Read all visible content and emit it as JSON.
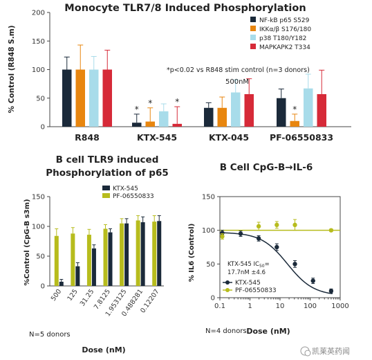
{
  "colors": {
    "navy": "#1b2a3a",
    "orange": "#e8860f",
    "lightblue": "#a8dcea",
    "red": "#d62a38",
    "olive": "#b7bc1d"
  },
  "chart_data": [
    {
      "type": "bar",
      "title": "Monocyte TLR7/8 Induced Phosphorylation",
      "ylabel": "% Control (R848 S.m)",
      "ylim": [
        0,
        200
      ],
      "yticks": [
        "0",
        "50",
        "100",
        "150",
        "200"
      ],
      "categories": [
        "R848",
        "KTX-545",
        "KTX-045",
        "PF-06550833"
      ],
      "series": [
        {
          "name": "NF-kB p65 S529",
          "color": "#1b2a3a",
          "values": [
            100,
            7,
            33,
            50
          ],
          "errors": [
            22,
            15,
            9,
            16
          ]
        },
        {
          "name": "IKKα/β S176/180",
          "color": "#e8860f",
          "values": [
            100,
            9,
            33,
            10
          ],
          "errors": [
            43,
            24,
            19,
            12
          ]
        },
        {
          "name": "p38 T180/Y182",
          "color": "#a8dcea",
          "values": [
            100,
            27,
            60,
            67
          ],
          "errors": [
            23,
            13,
            22,
            25
          ]
        },
        {
          "name": "MAPKAPK2 T334",
          "color": "#d62a38",
          "values": [
            100,
            5,
            57,
            57
          ],
          "errors": [
            34,
            30,
            27,
            42
          ]
        }
      ],
      "significant": [
        {
          "category": "KTX-545",
          "series": "NF-kB p65 S529"
        },
        {
          "category": "KTX-545",
          "series": "IKKα/β S176/180"
        },
        {
          "category": "KTX-545",
          "series": "MAPKAPK2 T334"
        },
        {
          "category": "PF-06550833",
          "series": "IKKα/β S176/180"
        }
      ],
      "sig_mark": "*",
      "annotations": [
        "*p<0.02 vs R848 stim control (n=3 donors)",
        "500nM"
      ],
      "legend_position": "top-right",
      "grid": false
    },
    {
      "type": "bar",
      "title": "B cell TLR9 induced Phosphorylation of p65",
      "title_lines": [
        "B cell TLR9 induced",
        "Phosphorylation of p65"
      ],
      "xlabel": "Dose (nM)",
      "ylabel": "%Control (CpG-B s3m)",
      "ylim": [
        0,
        150
      ],
      "yticks": [
        "0",
        "50",
        "100",
        "150"
      ],
      "categories": [
        "500",
        "125",
        "31.25",
        "7.8125",
        "1.953125",
        "0.488281",
        "0.12207"
      ],
      "series": [
        {
          "name": "KTX-545",
          "color": "#1b2a3a",
          "values": [
            7,
            33,
            63,
            90,
            105,
            107,
            109
          ],
          "errors": [
            4,
            6,
            6,
            6,
            8,
            9,
            9
          ]
        },
        {
          "name": "PF-06550833",
          "color": "#b7bc1d",
          "values": [
            84,
            88,
            86,
            96,
            105,
            110,
            108
          ],
          "errors": [
            12,
            10,
            9,
            7,
            8,
            8,
            10
          ]
        }
      ],
      "annotations": [
        "N=5 donors"
      ],
      "legend_position": "top-right",
      "grid": false
    },
    {
      "type": "line",
      "title": "B Cell CpG-B→IL-6",
      "xlabel": "Dose (nM)",
      "ylabel": "% IL6 (Control)",
      "xscale": "log",
      "xlim": [
        0.1,
        1000
      ],
      "xticks": [
        "0.1",
        "1",
        "10",
        "100",
        "1000"
      ],
      "ylim": [
        0,
        150
      ],
      "yticks": [
        "0",
        "50",
        "100",
        "150"
      ],
      "reference_line": 100,
      "series": [
        {
          "name": "KTX-545",
          "color": "#1b2a3a",
          "x": [
            0.12,
            0.49,
            1.95,
            7.8,
            31.25,
            125,
            500
          ],
          "y": [
            96,
            95,
            88,
            75,
            50,
            25,
            10
          ],
          "errors": [
            4,
            4,
            4,
            5,
            5,
            4,
            3
          ],
          "fit": {
            "top": 97,
            "bottom": 3,
            "ic50": 17.7,
            "hill": 1.0
          }
        },
        {
          "name": "PF-06550833",
          "color": "#b7bc1d",
          "x": [
            0.12,
            1.95,
            7.8,
            31.25,
            500
          ],
          "y": [
            91,
            106,
            108,
            108,
            100
          ],
          "errors": [
            4,
            6,
            5,
            8,
            2
          ]
        }
      ],
      "ic50_label": "KTX-545 IC",
      "ic50_sub": "50",
      "ic50_eq": "=",
      "ic50_value": "17.7nM ±4.6",
      "annotations": [
        "N=4 donors"
      ],
      "legend_position": "bottom-left",
      "grid": false
    }
  ],
  "watermark": "凯莱英药闻"
}
